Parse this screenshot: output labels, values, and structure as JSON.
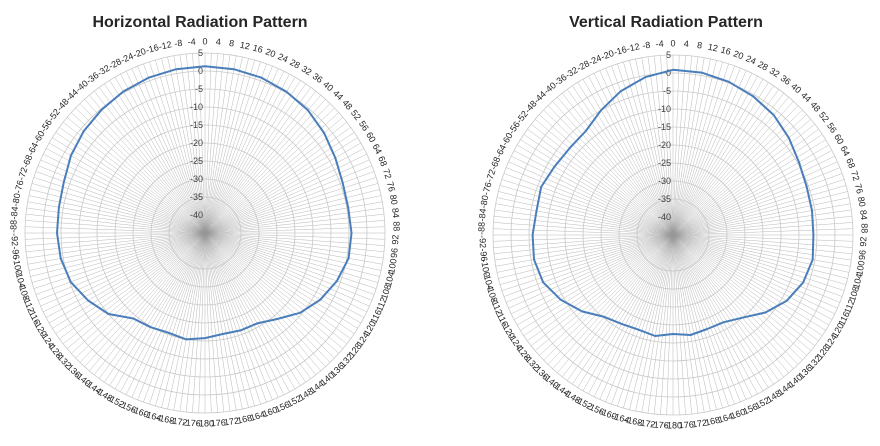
{
  "chart_data": [
    {
      "type": "radar",
      "title": "Horizontal Radiation Pattern",
      "r_ticks": [
        5,
        0,
        -5,
        -10,
        -15,
        -20,
        -25,
        -30,
        -35,
        -40
      ],
      "r_range": [
        -45,
        5
      ],
      "angle_ticks": [
        0,
        4,
        8,
        12,
        16,
        20,
        24,
        28,
        32,
        36,
        40,
        44,
        48,
        52,
        56,
        60,
        64,
        68,
        72,
        76,
        80,
        84,
        88,
        92,
        96,
        100,
        104,
        108,
        112,
        116,
        120,
        124,
        128,
        132,
        136,
        140,
        144,
        148,
        152,
        156,
        160,
        164,
        168,
        172,
        176,
        -180,
        -176,
        -172,
        -168,
        -164,
        -160,
        -156,
        -152,
        -148,
        -144,
        -140,
        -136,
        -132,
        -128,
        -124,
        -120,
        -116,
        -112,
        -108,
        -104,
        -100,
        -96,
        -92,
        -88,
        -84,
        -80,
        -76,
        -72,
        -68,
        -64,
        -60,
        -56,
        -52,
        -48,
        -44,
        -40,
        -36,
        -32,
        -28,
        -24,
        -20,
        -16,
        -12,
        -8,
        -4
      ],
      "grid": true,
      "series_color": "#4a7ebb",
      "angles_deg": [
        0,
        10,
        20,
        30,
        40,
        50,
        60,
        70,
        80,
        90,
        100,
        110,
        120,
        130,
        140,
        150,
        160,
        170,
        180,
        190,
        200,
        210,
        220,
        230,
        240,
        250,
        260,
        270,
        280,
        290,
        300,
        310,
        320,
        330,
        340,
        350
      ],
      "values_db": [
        1.3,
        1.2,
        0.9,
        0.3,
        -0.5,
        -1.8,
        -3.2,
        -4.3,
        -4.6,
        -4.3,
        -4.5,
        -6.0,
        -8.0,
        -10.5,
        -13.8,
        -16.0,
        -16.2,
        -16.5,
        -15.8,
        -15.0,
        -15.5,
        -14.8,
        -14.0,
        -10.0,
        -7.5,
        -5.3,
        -4.3,
        -3.9,
        -3.8,
        -3.3,
        -2.0,
        -1.0,
        -0.3,
        0.4,
        0.9,
        1.2
      ]
    },
    {
      "type": "radar",
      "title": "Vertical Radiation Pattern",
      "r_ticks": [
        5,
        0,
        -5,
        -10,
        -15,
        -20,
        -25,
        -30,
        -35,
        -40
      ],
      "r_range": [
        -45,
        5
      ],
      "angle_ticks": [
        0,
        4,
        8,
        12,
        16,
        20,
        24,
        28,
        32,
        36,
        40,
        44,
        48,
        52,
        56,
        60,
        64,
        68,
        72,
        76,
        80,
        84,
        88,
        92,
        96,
        100,
        104,
        108,
        112,
        116,
        120,
        124,
        128,
        132,
        136,
        140,
        144,
        148,
        152,
        156,
        160,
        164,
        168,
        172,
        176,
        -180,
        -176,
        -172,
        -168,
        -164,
        -160,
        -156,
        -152,
        -148,
        -144,
        -140,
        -136,
        -132,
        -128,
        -124,
        -120,
        -116,
        -112,
        -108,
        -104,
        -100,
        -96,
        -92,
        -88,
        -84,
        -80,
        -76,
        -72,
        -68,
        -64,
        -60,
        -56,
        -52,
        -48,
        -44,
        -40,
        -36,
        -32,
        -28,
        -24,
        -20,
        -16,
        -12,
        -8,
        -4
      ],
      "grid": true,
      "series_color": "#4a7ebb",
      "angles_deg": [
        0,
        10,
        20,
        30,
        40,
        50,
        60,
        70,
        80,
        90,
        100,
        110,
        120,
        130,
        140,
        150,
        160,
        170,
        180,
        190,
        200,
        210,
        220,
        230,
        240,
        250,
        260,
        270,
        280,
        290,
        300,
        310,
        320,
        330,
        340,
        350
      ],
      "values_db": [
        0.9,
        0.8,
        0.3,
        -0.5,
        -1.5,
        -3.0,
        -4.6,
        -5.5,
        -5.8,
        -6.0,
        -5.6,
        -6.5,
        -8.5,
        -11.5,
        -15.0,
        -17.0,
        -17.2,
        -16.8,
        -17.5,
        -16.5,
        -17.0,
        -16.5,
        -15.3,
        -12.0,
        -9.0,
        -6.6,
        -5.8,
        -6.0,
        -6.5,
        -6.0,
        -7.0,
        -7.5,
        -7.3,
        -5.0,
        -2.5,
        -0.5
      ]
    }
  ]
}
